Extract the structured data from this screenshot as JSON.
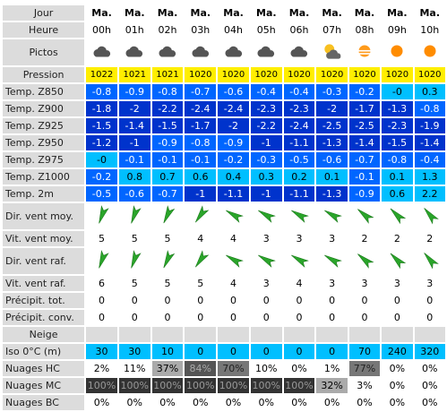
{
  "labels": {
    "jour": "Jour",
    "heure": "Heure",
    "pictos": "Pictos",
    "pression": "Pression",
    "z850": "Temp. Z850",
    "z900": "Temp. Z900",
    "z925": "Temp. Z925",
    "z950": "Temp. Z950",
    "z975": "Temp. Z975",
    "z1000": "Temp. Z1000",
    "t2m": "Temp. 2m",
    "dir_moy": "Dir. vent moy.",
    "vit_moy": "Vit. vent moy.",
    "dir_raf": "Dir. vent raf.",
    "vit_raf": "Vit. vent raf.",
    "precip_tot": "Précipit. tot.",
    "precip_conv": "Précipit. conv.",
    "neige": "Neige",
    "iso": "Iso 0°C (m)",
    "nhc": "Nuages HC",
    "nmc": "Nuages MC",
    "nbc": "Nuages BC"
  },
  "days": [
    "Ma.",
    "Ma.",
    "Ma.",
    "Ma.",
    "Ma.",
    "Ma.",
    "Ma.",
    "Ma.",
    "Ma.",
    "Ma.",
    "Ma."
  ],
  "hours": [
    "00h",
    "01h",
    "02h",
    "03h",
    "04h",
    "05h",
    "06h",
    "07h",
    "08h",
    "09h",
    "10h"
  ],
  "pictos": [
    "cloud-icon",
    "cloud-icon",
    "cloud-icon",
    "cloud-icon",
    "cloud-icon",
    "cloud-icon",
    "cloud-icon",
    "sun-cloud-icon",
    "sun-haze-icon",
    "sun-icon",
    "sun-icon"
  ],
  "pression": [
    "1022",
    "1021",
    "1021",
    "1020",
    "1020",
    "1020",
    "1020",
    "1020",
    "1020",
    "1020",
    "1020"
  ],
  "z850": [
    "-0.8",
    "-0.9",
    "-0.8",
    "-0.7",
    "-0.6",
    "-0.4",
    "-0.4",
    "-0.3",
    "-0.2",
    "-0",
    "0.3"
  ],
  "z900": [
    "-1.8",
    "-2",
    "-2.2",
    "-2.4",
    "-2.4",
    "-2.3",
    "-2.3",
    "-2",
    "-1.7",
    "-1.3",
    "-0.8"
  ],
  "z925": [
    "-1.5",
    "-1.4",
    "-1.5",
    "-1.7",
    "-2",
    "-2.2",
    "-2.4",
    "-2.5",
    "-2.5",
    "-2.3",
    "-1.9"
  ],
  "z950": [
    "-1.2",
    "-1",
    "-0.9",
    "-0.8",
    "-0.9",
    "-1",
    "-1.1",
    "-1.3",
    "-1.4",
    "-1.5",
    "-1.4"
  ],
  "z975": [
    "-0",
    "-0.1",
    "-0.1",
    "-0.1",
    "-0.2",
    "-0.3",
    "-0.5",
    "-0.6",
    "-0.7",
    "-0.8",
    "-0.4"
  ],
  "z1000": [
    "-0.2",
    "0.8",
    "0.7",
    "0.6",
    "0.4",
    "0.3",
    "0.2",
    "0.1",
    "-0.1",
    "0.1",
    "1.3"
  ],
  "t2m": [
    "-0.5",
    "-0.6",
    "-0.7",
    "-1",
    "-1.1",
    "-1",
    "-1.1",
    "-1.3",
    "-0.9",
    "0.6",
    "2.2"
  ],
  "dir_moy_deg": [
    200,
    200,
    205,
    215,
    300,
    300,
    300,
    300,
    310,
    315,
    320
  ],
  "vit_moy": [
    "5",
    "5",
    "5",
    "4",
    "4",
    "3",
    "3",
    "3",
    "2",
    "2",
    "2"
  ],
  "dir_raf_deg": [
    200,
    200,
    205,
    215,
    300,
    300,
    300,
    300,
    310,
    315,
    320
  ],
  "vit_raf": [
    "6",
    "5",
    "5",
    "5",
    "4",
    "3",
    "4",
    "3",
    "3",
    "3",
    "3"
  ],
  "precip_tot": [
    "0",
    "0",
    "0",
    "0",
    "0",
    "0",
    "0",
    "0",
    "0",
    "0",
    "0"
  ],
  "precip_conv": [
    "0",
    "0",
    "0",
    "0",
    "0",
    "0",
    "0",
    "0",
    "0",
    "0",
    "0"
  ],
  "iso": [
    "30",
    "30",
    "10",
    "0",
    "0",
    "0",
    "0",
    "0",
    "70",
    "240",
    "320"
  ],
  "nhc": [
    "2%",
    "11%",
    "37%",
    "84%",
    "70%",
    "10%",
    "0%",
    "1%",
    "77%",
    "0%",
    "0%"
  ],
  "nmc": [
    "100%",
    "100%",
    "100%",
    "100%",
    "100%",
    "100%",
    "100%",
    "32%",
    "3%",
    "0%",
    "0%"
  ],
  "nbc": [
    "0%",
    "0%",
    "0%",
    "0%",
    "0%",
    "0%",
    "0%",
    "0%",
    "0%",
    "0%",
    "0%"
  ],
  "colors": {
    "label_bg": "#dcdcdc",
    "pressure_bg": "#ffee00",
    "temp_dark": "#0033cc",
    "temp_mid": "#0066ff",
    "temp_light": "#00bfff",
    "arrow": "#2aa52a"
  }
}
